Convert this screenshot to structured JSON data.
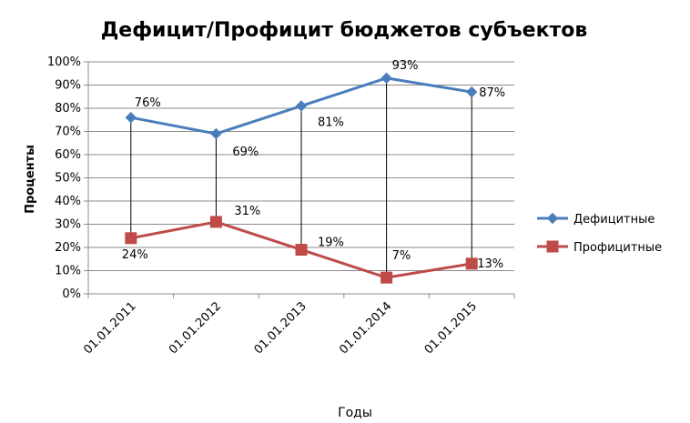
{
  "chart_data": {
    "type": "line",
    "title": "Дефицит/Профицит бюджетов субъектов",
    "xlabel": "Годы",
    "ylabel": "Проценты",
    "categories": [
      "01.01.2011",
      "01.01.2012",
      "01.01.2013",
      "01.01.2014",
      "01.01.2015"
    ],
    "y_ticks": [
      "0%",
      "10%",
      "20%",
      "30%",
      "40%",
      "50%",
      "60%",
      "70%",
      "80%",
      "90%",
      "100%"
    ],
    "ylim": [
      0,
      100
    ],
    "grid": true,
    "legend_position": "right",
    "drop_lines": true,
    "series": [
      {
        "name": "Дефицитные",
        "values": [
          76,
          69,
          81,
          93,
          87
        ],
        "labels": [
          "76%",
          "69%",
          "81%",
          "93%",
          "87%"
        ],
        "color": "#4a7ebb",
        "marker": "diamond"
      },
      {
        "name": "Профицитные",
        "values": [
          24,
          31,
          19,
          7,
          13
        ],
        "labels": [
          "24%",
          "31%",
          "19%",
          "7%",
          "13%"
        ],
        "color": "#be4b48",
        "marker": "square"
      }
    ]
  }
}
